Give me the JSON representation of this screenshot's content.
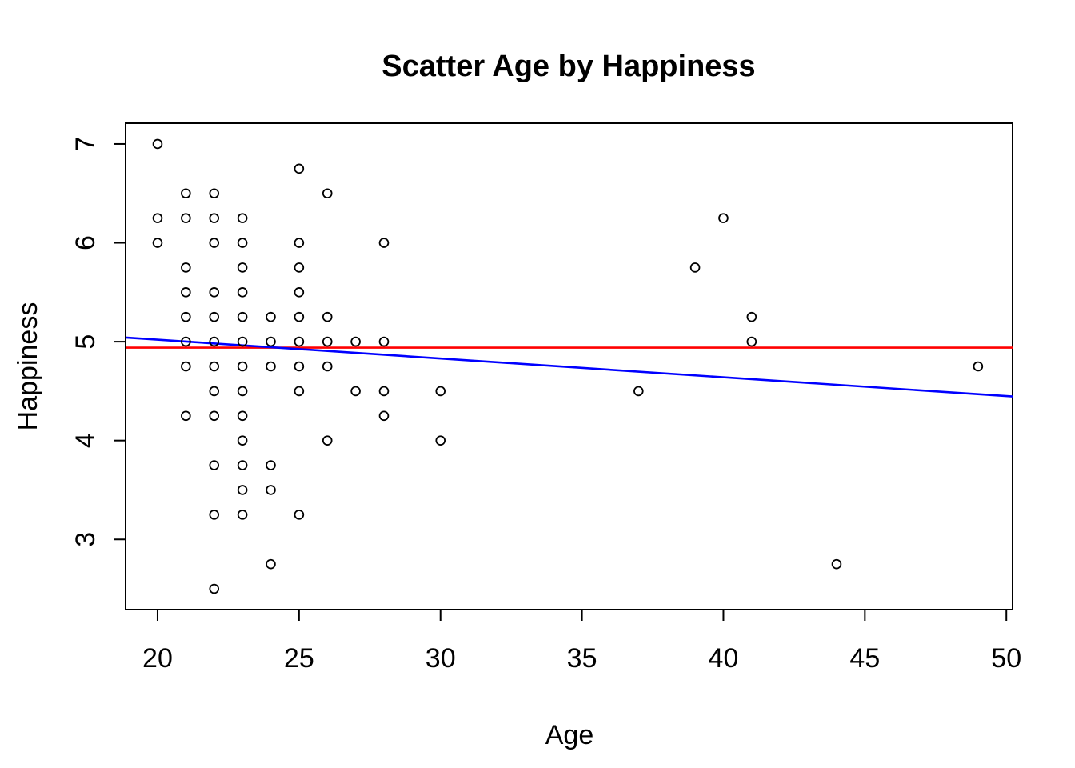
{
  "chart_data": {
    "type": "scatter",
    "title": "Scatter Age by Happiness",
    "xlabel": "Age",
    "ylabel": "Happiness",
    "xlim": [
      18.87,
      50.22
    ],
    "ylim": [
      2.29,
      7.21
    ],
    "x_ticks": [
      20,
      25,
      30,
      35,
      40,
      45,
      50
    ],
    "y_ticks": [
      3,
      4,
      5,
      6,
      7
    ],
    "grid": false,
    "legend": "none",
    "point_style": {
      "marker": "open-circle",
      "color": "#000000"
    },
    "points": [
      [
        20,
        7.0
      ],
      [
        25,
        6.75
      ],
      [
        21,
        6.5
      ],
      [
        22,
        6.5
      ],
      [
        26,
        6.5
      ],
      [
        20,
        6.25
      ],
      [
        21,
        6.25
      ],
      [
        22,
        6.25
      ],
      [
        23,
        6.25
      ],
      [
        40,
        6.25
      ],
      [
        20,
        6.0
      ],
      [
        22,
        6.0
      ],
      [
        23,
        6.0
      ],
      [
        25,
        6.0
      ],
      [
        28,
        6.0
      ],
      [
        21,
        5.75
      ],
      [
        23,
        5.75
      ],
      [
        25,
        5.75
      ],
      [
        39,
        5.75
      ],
      [
        21,
        5.5
      ],
      [
        22,
        5.5
      ],
      [
        23,
        5.5
      ],
      [
        25,
        5.5
      ],
      [
        21,
        5.25
      ],
      [
        22,
        5.25
      ],
      [
        23,
        5.25
      ],
      [
        24,
        5.25
      ],
      [
        25,
        5.25
      ],
      [
        26,
        5.25
      ],
      [
        41,
        5.25
      ],
      [
        21,
        5.0
      ],
      [
        22,
        5.0
      ],
      [
        23,
        5.0
      ],
      [
        24,
        5.0
      ],
      [
        25,
        5.0
      ],
      [
        26,
        5.0
      ],
      [
        27,
        5.0
      ],
      [
        28,
        5.0
      ],
      [
        41,
        5.0
      ],
      [
        21,
        4.75
      ],
      [
        22,
        4.75
      ],
      [
        23,
        4.75
      ],
      [
        24,
        4.75
      ],
      [
        25,
        4.75
      ],
      [
        26,
        4.75
      ],
      [
        49,
        4.75
      ],
      [
        22,
        4.5
      ],
      [
        23,
        4.5
      ],
      [
        25,
        4.5
      ],
      [
        27,
        4.5
      ],
      [
        28,
        4.5
      ],
      [
        30,
        4.5
      ],
      [
        37,
        4.5
      ],
      [
        21,
        4.25
      ],
      [
        22,
        4.25
      ],
      [
        23,
        4.25
      ],
      [
        28,
        4.25
      ],
      [
        23,
        4.0
      ],
      [
        26,
        4.0
      ],
      [
        30,
        4.0
      ],
      [
        22,
        3.75
      ],
      [
        23,
        3.75
      ],
      [
        24,
        3.75
      ],
      [
        23,
        3.5
      ],
      [
        24,
        3.5
      ],
      [
        22,
        3.25
      ],
      [
        23,
        3.25
      ],
      [
        25,
        3.25
      ],
      [
        24,
        2.75
      ],
      [
        44,
        2.75
      ],
      [
        22,
        2.5
      ]
    ],
    "lines": [
      {
        "name": "mean-line",
        "type": "horizontal",
        "y": 4.94,
        "color": "#FF0000"
      },
      {
        "name": "regression-line",
        "type": "linear",
        "intercept": 5.4,
        "slope": -0.019,
        "color": "#0000FF"
      }
    ]
  }
}
